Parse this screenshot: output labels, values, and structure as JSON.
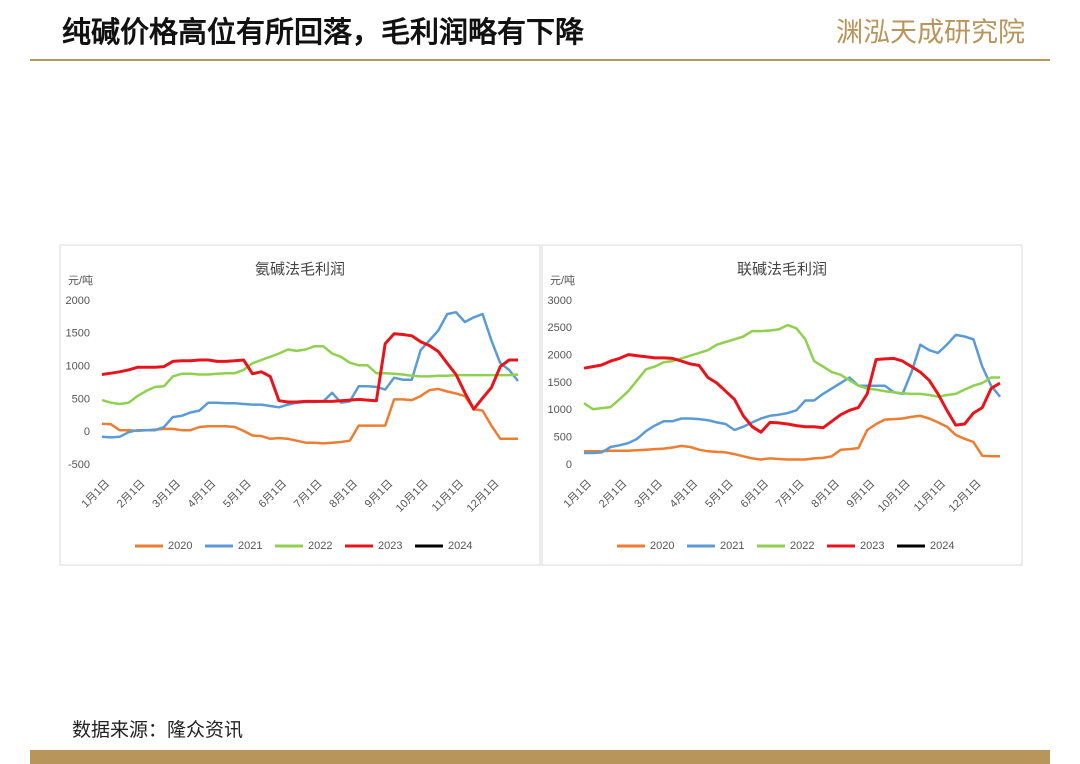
{
  "header": {
    "title": "纯碱价格高位有所回落，毛利润略有下降",
    "logo": "渊泓天成研究院"
  },
  "source": "数据来源：隆众资讯",
  "chart_data": [
    {
      "type": "line",
      "title": "氨碱法毛利润",
      "y_label": "元/吨",
      "categories": [
        "1月1日",
        null,
        null,
        null,
        "2月1日",
        null,
        null,
        null,
        "3月1日",
        null,
        null,
        null,
        "4月1日",
        null,
        null,
        null,
        "5月1日",
        null,
        null,
        null,
        "6月1日",
        null,
        null,
        null,
        "7月1日",
        null,
        null,
        null,
        "8月1日",
        null,
        null,
        null,
        "9月1日",
        null,
        null,
        null,
        "10月1日",
        null,
        null,
        null,
        "11月1日",
        null,
        null,
        null,
        "12月1日",
        null,
        null,
        null
      ],
      "ylim": [
        -500,
        2000
      ],
      "yticks": [
        -500,
        0,
        500,
        1000,
        1500,
        2000
      ],
      "series": [
        {
          "name": "2020",
          "color": "#ed7d31",
          "values": [
            130,
            120,
            30,
            30,
            20,
            30,
            40,
            50,
            50,
            30,
            30,
            80,
            90,
            90,
            90,
            80,
            20,
            -50,
            -60,
            -100,
            -90,
            -100,
            -130,
            -160,
            -160,
            -170,
            -160,
            -150,
            -130,
            100,
            100,
            100,
            100,
            500,
            500,
            490,
            550,
            640,
            660,
            620,
            590,
            550,
            350,
            330,
            100,
            -100,
            -100,
            -100
          ]
        },
        {
          "name": "2021",
          "color": "#5b9bd5",
          "values": [
            -70,
            -80,
            -70,
            0,
            30,
            30,
            30,
            80,
            230,
            250,
            300,
            330,
            450,
            450,
            440,
            440,
            430,
            420,
            420,
            400,
            380,
            420,
            450,
            460,
            460,
            470,
            600,
            450,
            470,
            700,
            700,
            690,
            650,
            830,
            800,
            800,
            1250,
            1400,
            1550,
            1800,
            1830,
            1680,
            1750,
            1800,
            1400,
            1050,
            950,
            780
          ]
        },
        {
          "name": "2022",
          "color": "#8fd14f",
          "values": [
            490,
            450,
            430,
            450,
            550,
            630,
            690,
            700,
            850,
            890,
            890,
            880,
            880,
            890,
            900,
            900,
            950,
            1050,
            1100,
            1150,
            1200,
            1260,
            1240,
            1260,
            1310,
            1310,
            1200,
            1150,
            1060,
            1020,
            1020,
            900,
            900,
            890,
            880,
            860,
            850,
            850,
            860,
            860,
            870,
            870,
            870,
            870,
            870,
            870,
            870,
            880
          ]
        },
        {
          "name": "2023",
          "color": "#e8141c",
          "values": [
            880,
            900,
            920,
            950,
            990,
            990,
            990,
            1000,
            1080,
            1090,
            1090,
            1100,
            1100,
            1080,
            1080,
            1090,
            1100,
            890,
            920,
            850,
            480,
            460,
            460,
            470,
            470,
            470,
            470,
            480,
            490,
            500,
            490,
            480,
            1350,
            1500,
            1490,
            1470,
            1380,
            1320,
            1230,
            1050,
            880,
            600,
            350,
            520,
            680,
            1000,
            1100,
            1100
          ]
        },
        {
          "name": "2024",
          "color": "#000000",
          "values": [
            null,
            null,
            null,
            null,
            null,
            null,
            null,
            null,
            null,
            null,
            null,
            null,
            null,
            null,
            null,
            null,
            null,
            null,
            null,
            null,
            null,
            null,
            null,
            null,
            null,
            null,
            null,
            null,
            null,
            null,
            null,
            null,
            null,
            null,
            null,
            null,
            null,
            null,
            null,
            null,
            null,
            null,
            null,
            null,
            null,
            null,
            null,
            null
          ]
        }
      ]
    },
    {
      "type": "line",
      "title": "联碱法毛利润",
      "y_label": "元/吨",
      "categories": [
        "1月1日",
        null,
        null,
        null,
        "2月1日",
        null,
        null,
        null,
        "3月1日",
        null,
        null,
        null,
        "4月1日",
        null,
        null,
        null,
        "5月1日",
        null,
        null,
        null,
        "6月1日",
        null,
        null,
        null,
        "7月1日",
        null,
        null,
        null,
        "8月1日",
        null,
        null,
        null,
        "9月1日",
        null,
        null,
        null,
        "10月1日",
        null,
        null,
        null,
        "11月1日",
        null,
        null,
        null,
        "12月1日",
        null,
        null,
        null
      ],
      "ylim": [
        0,
        3000
      ],
      "yticks": [
        0,
        500,
        1000,
        1500,
        2000,
        2500,
        3000
      ],
      "series": [
        {
          "name": "2020",
          "color": "#ed7d31",
          "values": [
            250,
            250,
            250,
            260,
            260,
            260,
            270,
            280,
            290,
            300,
            320,
            350,
            330,
            280,
            250,
            240,
            230,
            200,
            160,
            120,
            100,
            120,
            110,
            100,
            100,
            100,
            120,
            130,
            160,
            280,
            290,
            310,
            640,
            750,
            830,
            840,
            850,
            880,
            900,
            850,
            780,
            700,
            550,
            480,
            420,
            170,
            160,
            160
          ]
        },
        {
          "name": "2021",
          "color": "#5b9bd5",
          "values": [
            220,
            220,
            230,
            330,
            360,
            400,
            480,
            620,
            720,
            800,
            800,
            850,
            850,
            840,
            820,
            780,
            750,
            640,
            700,
            780,
            850,
            900,
            920,
            950,
            1000,
            1180,
            1180,
            1300,
            1400,
            1500,
            1600,
            1450,
            1450,
            1450,
            1450,
            1330,
            1300,
            1700,
            2200,
            2100,
            2050,
            2200,
            2380,
            2350,
            2300,
            1800,
            1450,
            1250
          ]
        },
        {
          "name": "2022",
          "color": "#8fd14f",
          "values": [
            1130,
            1020,
            1040,
            1060,
            1200,
            1350,
            1550,
            1750,
            1800,
            1880,
            1900,
            1950,
            2000,
            2050,
            2100,
            2200,
            2250,
            2300,
            2350,
            2450,
            2450,
            2460,
            2480,
            2560,
            2500,
            2300,
            1900,
            1800,
            1700,
            1650,
            1550,
            1450,
            1400,
            1380,
            1350,
            1330,
            1310,
            1300,
            1300,
            1280,
            1250,
            1280,
            1300,
            1380,
            1450,
            1500,
            1600,
            1600
          ]
        },
        {
          "name": "2023",
          "color": "#e8141c",
          "values": [
            1770,
            1800,
            1830,
            1900,
            1950,
            2020,
            2000,
            1980,
            1960,
            1960,
            1950,
            1900,
            1850,
            1820,
            1600,
            1500,
            1350,
            1200,
            900,
            700,
            600,
            780,
            770,
            750,
            720,
            700,
            700,
            680,
            800,
            920,
            1000,
            1050,
            1300,
            1930,
            1940,
            1950,
            1900,
            1800,
            1700,
            1550,
            1300,
            1000,
            730,
            750,
            950,
            1050,
            1400,
            1500
          ]
        },
        {
          "name": "2024",
          "color": "#000000",
          "values": [
            null,
            null,
            null,
            null,
            null,
            null,
            null,
            null,
            null,
            null,
            null,
            null,
            null,
            null,
            null,
            null,
            null,
            null,
            null,
            null,
            null,
            null,
            null,
            null,
            null,
            null,
            null,
            null,
            null,
            null,
            null,
            null,
            null,
            null,
            null,
            null,
            null,
            null,
            null,
            null,
            null,
            null,
            null,
            null,
            null,
            null,
            null,
            null
          ]
        }
      ]
    }
  ]
}
